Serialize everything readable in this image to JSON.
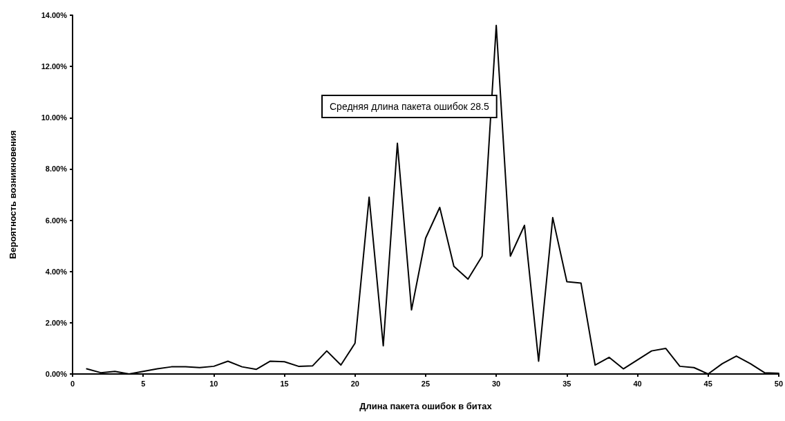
{
  "chart_data": {
    "type": "line",
    "xlabel": "Длина пакета ошибок в битах",
    "ylabel": "Вероятность возникновения",
    "annotations": [
      "Средняя длина пакета ошибок 28.5"
    ],
    "x": [
      1,
      2,
      3,
      4,
      5,
      6,
      7,
      8,
      9,
      10,
      11,
      12,
      13,
      14,
      15,
      16,
      17,
      18,
      19,
      20,
      21,
      22,
      23,
      24,
      25,
      26,
      27,
      28,
      29,
      30,
      31,
      32,
      33,
      34,
      35,
      36,
      37,
      38,
      39,
      40,
      41,
      42,
      43,
      44,
      45,
      46,
      47,
      48,
      49,
      50
    ],
    "series": [
      {
        "color": "#000000",
        "values": [
          0.2,
          0.05,
          0.1,
          0,
          0.1,
          0.2,
          0.28,
          0.28,
          0.25,
          0.3,
          0.5,
          0.28,
          0.18,
          0.5,
          0.48,
          0.3,
          0.32,
          0.9,
          0.35,
          1.2,
          6.9,
          1.1,
          9.0,
          2.5,
          5.3,
          6.5,
          4.2,
          3.7,
          4.6,
          13.6,
          4.6,
          5.8,
          0.5,
          6.1,
          3.6,
          3.55,
          0.35,
          0.65,
          0.2,
          0.55,
          0.9,
          1.0,
          0.3,
          0.25,
          0,
          0.4,
          0.7,
          0.4,
          0.05,
          0.03
        ]
      }
    ],
    "xlim": [
      0,
      50
    ],
    "xticks": [
      0,
      5,
      10,
      15,
      20,
      25,
      30,
      35,
      40,
      45,
      50
    ],
    "ylim": [
      0,
      14
    ],
    "yticks": [
      {
        "value": 0,
        "label": "0.00%"
      },
      {
        "value": 2,
        "label": "2.00%"
      },
      {
        "value": 4,
        "label": "4.00%"
      },
      {
        "value": 6,
        "label": "6.00%"
      },
      {
        "value": 8,
        "label": "8.00%"
      },
      {
        "value": 10,
        "label": "10.00%"
      },
      {
        "value": 12,
        "label": "12.00%"
      },
      {
        "value": 14,
        "label": "14.00%"
      }
    ],
    "grid": false,
    "marker": "none",
    "line_style": "solid"
  }
}
